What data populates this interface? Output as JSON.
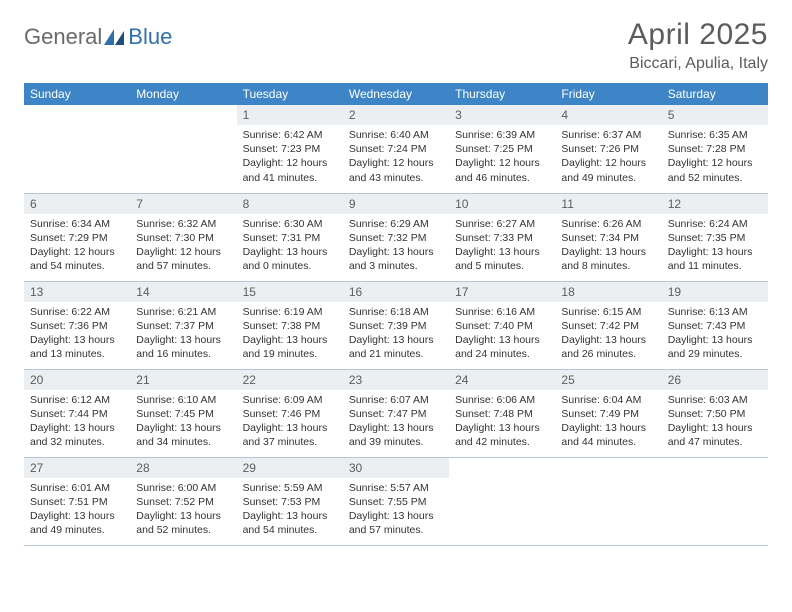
{
  "logo": {
    "part1": "General",
    "part2": "Blue"
  },
  "title": "April 2025",
  "location": "Biccari, Apulia, Italy",
  "colors": {
    "header_bg": "#3d85c6",
    "header_text": "#ffffff",
    "daynum_bg": "#eceff1",
    "text": "#333333",
    "muted": "#5c5c5c",
    "rule": "#b9c6d6",
    "logo_gray": "#6a6a6a",
    "logo_blue": "#2f6fb3"
  },
  "weekdays": [
    "Sunday",
    "Monday",
    "Tuesday",
    "Wednesday",
    "Thursday",
    "Friday",
    "Saturday"
  ],
  "weeks": [
    [
      null,
      null,
      {
        "n": "1",
        "sr": "Sunrise: 6:42 AM",
        "ss": "Sunset: 7:23 PM",
        "dl": "Daylight: 12 hours and 41 minutes."
      },
      {
        "n": "2",
        "sr": "Sunrise: 6:40 AM",
        "ss": "Sunset: 7:24 PM",
        "dl": "Daylight: 12 hours and 43 minutes."
      },
      {
        "n": "3",
        "sr": "Sunrise: 6:39 AM",
        "ss": "Sunset: 7:25 PM",
        "dl": "Daylight: 12 hours and 46 minutes."
      },
      {
        "n": "4",
        "sr": "Sunrise: 6:37 AM",
        "ss": "Sunset: 7:26 PM",
        "dl": "Daylight: 12 hours and 49 minutes."
      },
      {
        "n": "5",
        "sr": "Sunrise: 6:35 AM",
        "ss": "Sunset: 7:28 PM",
        "dl": "Daylight: 12 hours and 52 minutes."
      }
    ],
    [
      {
        "n": "6",
        "sr": "Sunrise: 6:34 AM",
        "ss": "Sunset: 7:29 PM",
        "dl": "Daylight: 12 hours and 54 minutes."
      },
      {
        "n": "7",
        "sr": "Sunrise: 6:32 AM",
        "ss": "Sunset: 7:30 PM",
        "dl": "Daylight: 12 hours and 57 minutes."
      },
      {
        "n": "8",
        "sr": "Sunrise: 6:30 AM",
        "ss": "Sunset: 7:31 PM",
        "dl": "Daylight: 13 hours and 0 minutes."
      },
      {
        "n": "9",
        "sr": "Sunrise: 6:29 AM",
        "ss": "Sunset: 7:32 PM",
        "dl": "Daylight: 13 hours and 3 minutes."
      },
      {
        "n": "10",
        "sr": "Sunrise: 6:27 AM",
        "ss": "Sunset: 7:33 PM",
        "dl": "Daylight: 13 hours and 5 minutes."
      },
      {
        "n": "11",
        "sr": "Sunrise: 6:26 AM",
        "ss": "Sunset: 7:34 PM",
        "dl": "Daylight: 13 hours and 8 minutes."
      },
      {
        "n": "12",
        "sr": "Sunrise: 6:24 AM",
        "ss": "Sunset: 7:35 PM",
        "dl": "Daylight: 13 hours and 11 minutes."
      }
    ],
    [
      {
        "n": "13",
        "sr": "Sunrise: 6:22 AM",
        "ss": "Sunset: 7:36 PM",
        "dl": "Daylight: 13 hours and 13 minutes."
      },
      {
        "n": "14",
        "sr": "Sunrise: 6:21 AM",
        "ss": "Sunset: 7:37 PM",
        "dl": "Daylight: 13 hours and 16 minutes."
      },
      {
        "n": "15",
        "sr": "Sunrise: 6:19 AM",
        "ss": "Sunset: 7:38 PM",
        "dl": "Daylight: 13 hours and 19 minutes."
      },
      {
        "n": "16",
        "sr": "Sunrise: 6:18 AM",
        "ss": "Sunset: 7:39 PM",
        "dl": "Daylight: 13 hours and 21 minutes."
      },
      {
        "n": "17",
        "sr": "Sunrise: 6:16 AM",
        "ss": "Sunset: 7:40 PM",
        "dl": "Daylight: 13 hours and 24 minutes."
      },
      {
        "n": "18",
        "sr": "Sunrise: 6:15 AM",
        "ss": "Sunset: 7:42 PM",
        "dl": "Daylight: 13 hours and 26 minutes."
      },
      {
        "n": "19",
        "sr": "Sunrise: 6:13 AM",
        "ss": "Sunset: 7:43 PM",
        "dl": "Daylight: 13 hours and 29 minutes."
      }
    ],
    [
      {
        "n": "20",
        "sr": "Sunrise: 6:12 AM",
        "ss": "Sunset: 7:44 PM",
        "dl": "Daylight: 13 hours and 32 minutes."
      },
      {
        "n": "21",
        "sr": "Sunrise: 6:10 AM",
        "ss": "Sunset: 7:45 PM",
        "dl": "Daylight: 13 hours and 34 minutes."
      },
      {
        "n": "22",
        "sr": "Sunrise: 6:09 AM",
        "ss": "Sunset: 7:46 PM",
        "dl": "Daylight: 13 hours and 37 minutes."
      },
      {
        "n": "23",
        "sr": "Sunrise: 6:07 AM",
        "ss": "Sunset: 7:47 PM",
        "dl": "Daylight: 13 hours and 39 minutes."
      },
      {
        "n": "24",
        "sr": "Sunrise: 6:06 AM",
        "ss": "Sunset: 7:48 PM",
        "dl": "Daylight: 13 hours and 42 minutes."
      },
      {
        "n": "25",
        "sr": "Sunrise: 6:04 AM",
        "ss": "Sunset: 7:49 PM",
        "dl": "Daylight: 13 hours and 44 minutes."
      },
      {
        "n": "26",
        "sr": "Sunrise: 6:03 AM",
        "ss": "Sunset: 7:50 PM",
        "dl": "Daylight: 13 hours and 47 minutes."
      }
    ],
    [
      {
        "n": "27",
        "sr": "Sunrise: 6:01 AM",
        "ss": "Sunset: 7:51 PM",
        "dl": "Daylight: 13 hours and 49 minutes."
      },
      {
        "n": "28",
        "sr": "Sunrise: 6:00 AM",
        "ss": "Sunset: 7:52 PM",
        "dl": "Daylight: 13 hours and 52 minutes."
      },
      {
        "n": "29",
        "sr": "Sunrise: 5:59 AM",
        "ss": "Sunset: 7:53 PM",
        "dl": "Daylight: 13 hours and 54 minutes."
      },
      {
        "n": "30",
        "sr": "Sunrise: 5:57 AM",
        "ss": "Sunset: 7:55 PM",
        "dl": "Daylight: 13 hours and 57 minutes."
      },
      null,
      null,
      null
    ]
  ]
}
